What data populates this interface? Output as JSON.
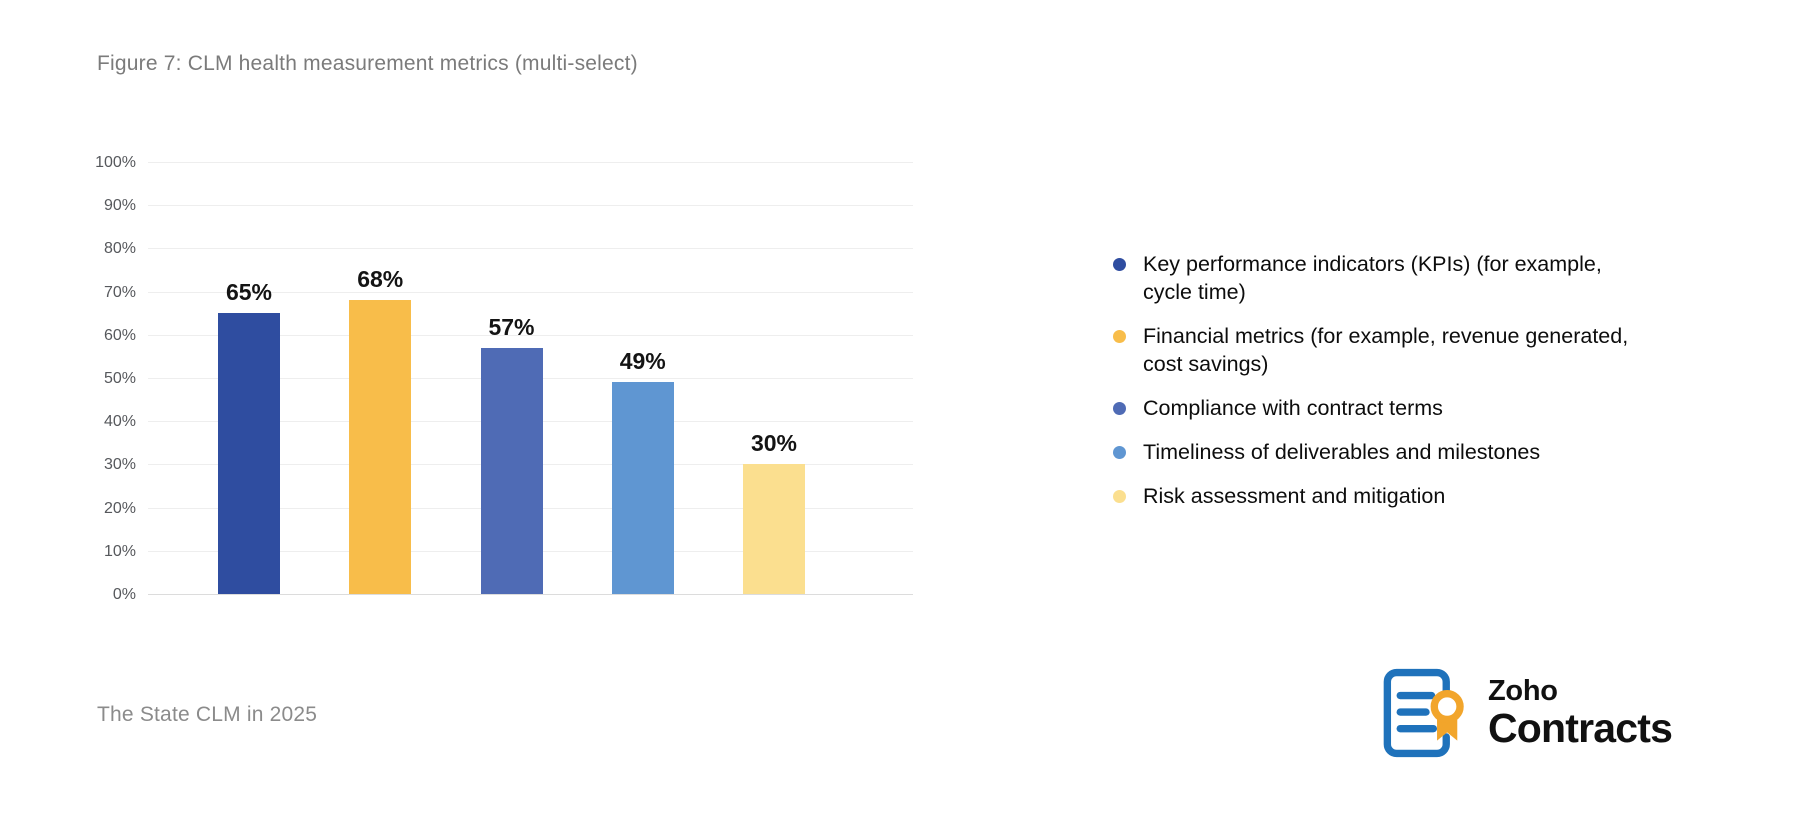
{
  "figure": {
    "title": "Figure 7: CLM health measurement metrics (multi-select)"
  },
  "chart_data": {
    "type": "bar",
    "title": "Figure 7: CLM health measurement metrics (multi-select)",
    "categories": [
      "Key performance indicators (KPIs) (for example, cycle time)",
      "Financial metrics (for example, revenue generated, cost savings)",
      "Compliance with contract terms",
      "Timeliness of deliverables and milestones",
      "Risk assessment and mitigation"
    ],
    "values": [
      65,
      68,
      57,
      49,
      30
    ],
    "bar_labels": [
      "65%",
      "68%",
      "57%",
      "49%",
      "30%"
    ],
    "colors": [
      "#2f4da0",
      "#f8bd4a",
      "#4f6bb5",
      "#5f96d2",
      "#fbdf8f"
    ],
    "xlabel": "",
    "ylabel": "",
    "ylim": [
      0,
      100
    ],
    "yticks": [
      0,
      10,
      20,
      30,
      40,
      50,
      60,
      70,
      80,
      90,
      100
    ],
    "ytick_suffix": "%",
    "grid": true,
    "legend_position": "right",
    "legend": {
      "items": [
        {
          "color": "#2f4da0",
          "lines": [
            "Key performance indicators (KPIs) (for example,",
            "cycle time)"
          ]
        },
        {
          "color": "#f8bd4a",
          "lines": [
            "Financial metrics (for example, revenue generated,",
            "cost savings)"
          ]
        },
        {
          "color": "#4f6bb5",
          "lines": [
            "Compliance with contract terms"
          ]
        },
        {
          "color": "#5f96d2",
          "lines": [
            "Timeliness of deliverables and milestones"
          ]
        },
        {
          "color": "#fbdf8f",
          "lines": [
            "Risk assessment and mitigation"
          ]
        }
      ]
    }
  },
  "footer": {
    "source": "The State CLM in 2025"
  },
  "logo": {
    "brand": "Zoho",
    "product": "Contracts",
    "icon": "document-with-ribbon-seal",
    "blue": "#1f72bb",
    "yellow": "#f2a52b"
  }
}
